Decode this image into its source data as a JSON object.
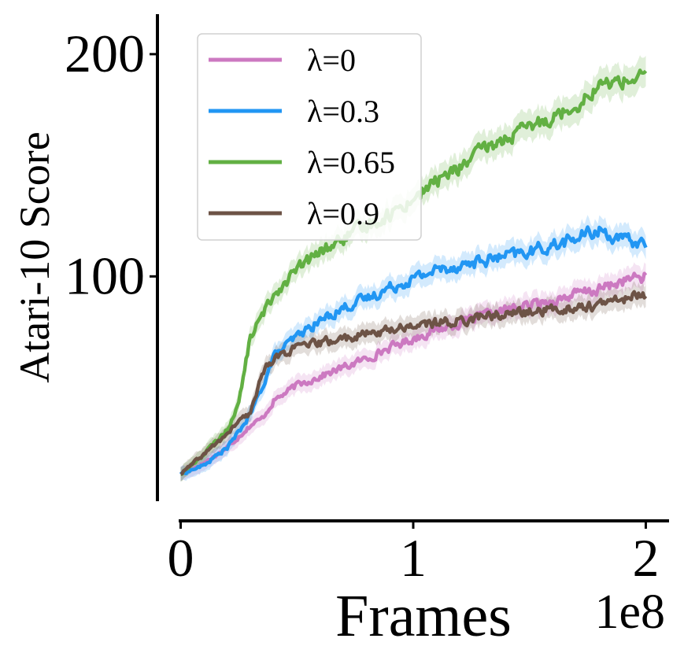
{
  "chart_data": {
    "type": "line",
    "xlabel": "Frames",
    "ylabel": "Atari-10 Score",
    "x_offset_label": "1e8",
    "xlim": [
      -0.1,
      2.1
    ],
    "ylim": [
      -10,
      218
    ],
    "xticks": [
      {
        "value": 0,
        "label": "0"
      },
      {
        "value": 1,
        "label": "1"
      },
      {
        "value": 2,
        "label": "2"
      }
    ],
    "yticks": [
      {
        "value": 100,
        "label": "100"
      },
      {
        "value": 200,
        "label": "200"
      }
    ],
    "grid": false,
    "legend_position": "top-left",
    "x": [
      0.0,
      0.1,
      0.2,
      0.25,
      0.3,
      0.35,
      0.4,
      0.5,
      0.6,
      0.7,
      0.8,
      0.9,
      1.0,
      1.1,
      1.2,
      1.3,
      1.4,
      1.5,
      1.6,
      1.7,
      1.8,
      1.9,
      2.0
    ],
    "series": [
      {
        "name": "λ=0",
        "color": "#cc79c1",
        "values": [
          11,
          16,
          23,
          28,
          33,
          36,
          44,
          51,
          55,
          59,
          63,
          68,
          72,
          76,
          79,
          82,
          85,
          87,
          89,
          92,
          94,
          98,
          100
        ]
      },
      {
        "name": "λ=0.3",
        "color": "#2196f3",
        "values": [
          11,
          15,
          23,
          30,
          38,
          50,
          64,
          73,
          80,
          86,
          90,
          95,
          99,
          103,
          105,
          107,
          109,
          111,
          114,
          117,
          121,
          116,
          115
        ]
      },
      {
        "name": "λ=0.65",
        "color": "#62b043",
        "values": [
          11,
          20,
          31,
          43,
          73,
          82,
          92,
          103,
          111,
          117,
          123,
          128,
          135,
          143,
          149,
          157,
          162,
          167,
          172,
          177,
          186,
          188,
          190
        ]
      },
      {
        "name": "λ=0.9",
        "color": "#6d5346",
        "values": [
          11,
          20,
          29,
          35,
          38,
          57,
          63,
          68,
          70,
          72,
          74,
          76,
          78,
          79,
          80,
          82,
          83,
          84,
          85,
          86,
          87,
          90,
          92
        ]
      }
    ]
  }
}
